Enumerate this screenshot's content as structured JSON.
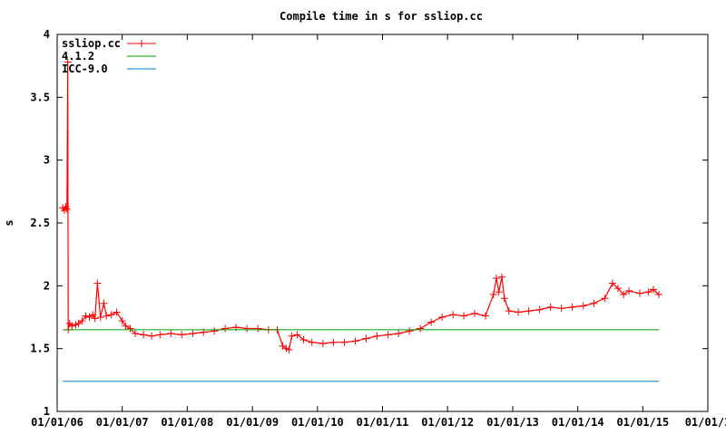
{
  "chart_data": {
    "type": "line",
    "title": "Compile time in s for ssliop.cc",
    "xlabel": "",
    "ylabel": "s",
    "xlim": [
      "2006-01-01",
      "2016-01-01"
    ],
    "ylim": [
      1,
      4
    ],
    "x_ticks": [
      "01/01/06",
      "01/01/07",
      "01/01/08",
      "01/01/09",
      "01/01/10",
      "01/01/11",
      "01/01/12",
      "01/01/13",
      "01/01/14",
      "01/01/15",
      "01/01/1"
    ],
    "x_tick_dates": [
      "2006-01-01",
      "2007-01-01",
      "2008-01-01",
      "2009-01-01",
      "2010-01-01",
      "2011-01-01",
      "2012-01-01",
      "2013-01-01",
      "2014-01-01",
      "2015-01-01",
      "2016-01-01"
    ],
    "y_ticks": [
      "1",
      "1.5",
      "2",
      "2.5",
      "3",
      "3.5",
      "4"
    ],
    "y_tick_values": [
      1,
      1.5,
      2,
      2.5,
      3,
      3.5,
      4
    ],
    "legend_position": "top-left",
    "grid": false,
    "series": [
      {
        "name": "ssliop.cc",
        "color": "#ff0000",
        "marker": "plus",
        "points": [
          [
            "2006-02-01",
            2.62
          ],
          [
            "2006-02-10",
            2.6
          ],
          [
            "2006-02-18",
            2.63
          ],
          [
            "2006-02-25",
            2.61
          ],
          [
            "2006-03-01",
            3.78
          ],
          [
            "2006-03-04",
            1.65
          ],
          [
            "2006-03-12",
            1.7
          ],
          [
            "2006-03-25",
            1.68
          ],
          [
            "2006-04-15",
            1.69
          ],
          [
            "2006-05-01",
            1.7
          ],
          [
            "2006-05-20",
            1.72
          ],
          [
            "2006-06-10",
            1.76
          ],
          [
            "2006-07-01",
            1.75
          ],
          [
            "2006-07-20",
            1.77
          ],
          [
            "2006-08-01",
            1.74
          ],
          [
            "2006-08-15",
            2.02
          ],
          [
            "2006-09-01",
            1.75
          ],
          [
            "2006-09-20",
            1.86
          ],
          [
            "2006-10-05",
            1.76
          ],
          [
            "2006-11-01",
            1.77
          ],
          [
            "2006-12-01",
            1.79
          ],
          [
            "2007-01-01",
            1.72
          ],
          [
            "2007-01-20",
            1.68
          ],
          [
            "2007-02-15",
            1.66
          ],
          [
            "2007-03-15",
            1.62
          ],
          [
            "2007-05-01",
            1.61
          ],
          [
            "2007-06-15",
            1.6
          ],
          [
            "2007-08-01",
            1.61
          ],
          [
            "2007-10-01",
            1.62
          ],
          [
            "2007-12-01",
            1.61
          ],
          [
            "2008-02-01",
            1.62
          ],
          [
            "2008-04-01",
            1.63
          ],
          [
            "2008-06-01",
            1.64
          ],
          [
            "2008-08-01",
            1.66
          ],
          [
            "2008-10-01",
            1.67
          ],
          [
            "2008-12-01",
            1.66
          ],
          [
            "2009-02-01",
            1.66
          ],
          [
            "2009-04-01",
            1.65
          ],
          [
            "2009-05-20",
            1.65
          ],
          [
            "2009-06-20",
            1.52
          ],
          [
            "2009-07-10",
            1.5
          ],
          [
            "2009-07-25",
            1.49
          ],
          [
            "2009-08-10",
            1.6
          ],
          [
            "2009-09-10",
            1.61
          ],
          [
            "2009-10-15",
            1.57
          ],
          [
            "2009-12-01",
            1.55
          ],
          [
            "2010-02-01",
            1.54
          ],
          [
            "2010-04-01",
            1.55
          ],
          [
            "2010-06-01",
            1.55
          ],
          [
            "2010-08-01",
            1.56
          ],
          [
            "2010-10-01",
            1.58
          ],
          [
            "2010-12-01",
            1.6
          ],
          [
            "2011-02-01",
            1.61
          ],
          [
            "2011-04-01",
            1.62
          ],
          [
            "2011-06-01",
            1.64
          ],
          [
            "2011-08-01",
            1.66
          ],
          [
            "2011-10-01",
            1.71
          ],
          [
            "2011-12-01",
            1.75
          ],
          [
            "2012-02-01",
            1.77
          ],
          [
            "2012-04-01",
            1.76
          ],
          [
            "2012-06-01",
            1.78
          ],
          [
            "2012-08-01",
            1.76
          ],
          [
            "2012-09-15",
            1.93
          ],
          [
            "2012-10-01",
            2.06
          ],
          [
            "2012-10-15",
            1.95
          ],
          [
            "2012-11-01",
            2.07
          ],
          [
            "2012-11-15",
            1.9
          ],
          [
            "2012-12-10",
            1.8
          ],
          [
            "2013-02-01",
            1.79
          ],
          [
            "2013-04-01",
            1.8
          ],
          [
            "2013-06-01",
            1.81
          ],
          [
            "2013-08-01",
            1.83
          ],
          [
            "2013-10-01",
            1.82
          ],
          [
            "2013-12-01",
            1.83
          ],
          [
            "2014-02-01",
            1.84
          ],
          [
            "2014-04-01",
            1.86
          ],
          [
            "2014-06-01",
            1.9
          ],
          [
            "2014-07-15",
            2.02
          ],
          [
            "2014-08-15",
            1.98
          ],
          [
            "2014-09-15",
            1.93
          ],
          [
            "2014-10-15",
            1.96
          ],
          [
            "2014-12-15",
            1.94
          ],
          [
            "2015-02-01",
            1.95
          ],
          [
            "2015-03-01",
            1.97
          ],
          [
            "2015-04-01",
            1.93
          ]
        ]
      },
      {
        "name": "4.1.2",
        "color": "#00a000",
        "marker": "none",
        "points": [
          [
            "2006-02-01",
            1.65
          ],
          [
            "2015-04-01",
            1.65
          ]
        ]
      },
      {
        "name": "ICC-9.0",
        "color": "#0080d0",
        "marker": "none",
        "points": [
          [
            "2006-02-01",
            1.24
          ],
          [
            "2015-04-01",
            1.24
          ]
        ]
      }
    ]
  }
}
